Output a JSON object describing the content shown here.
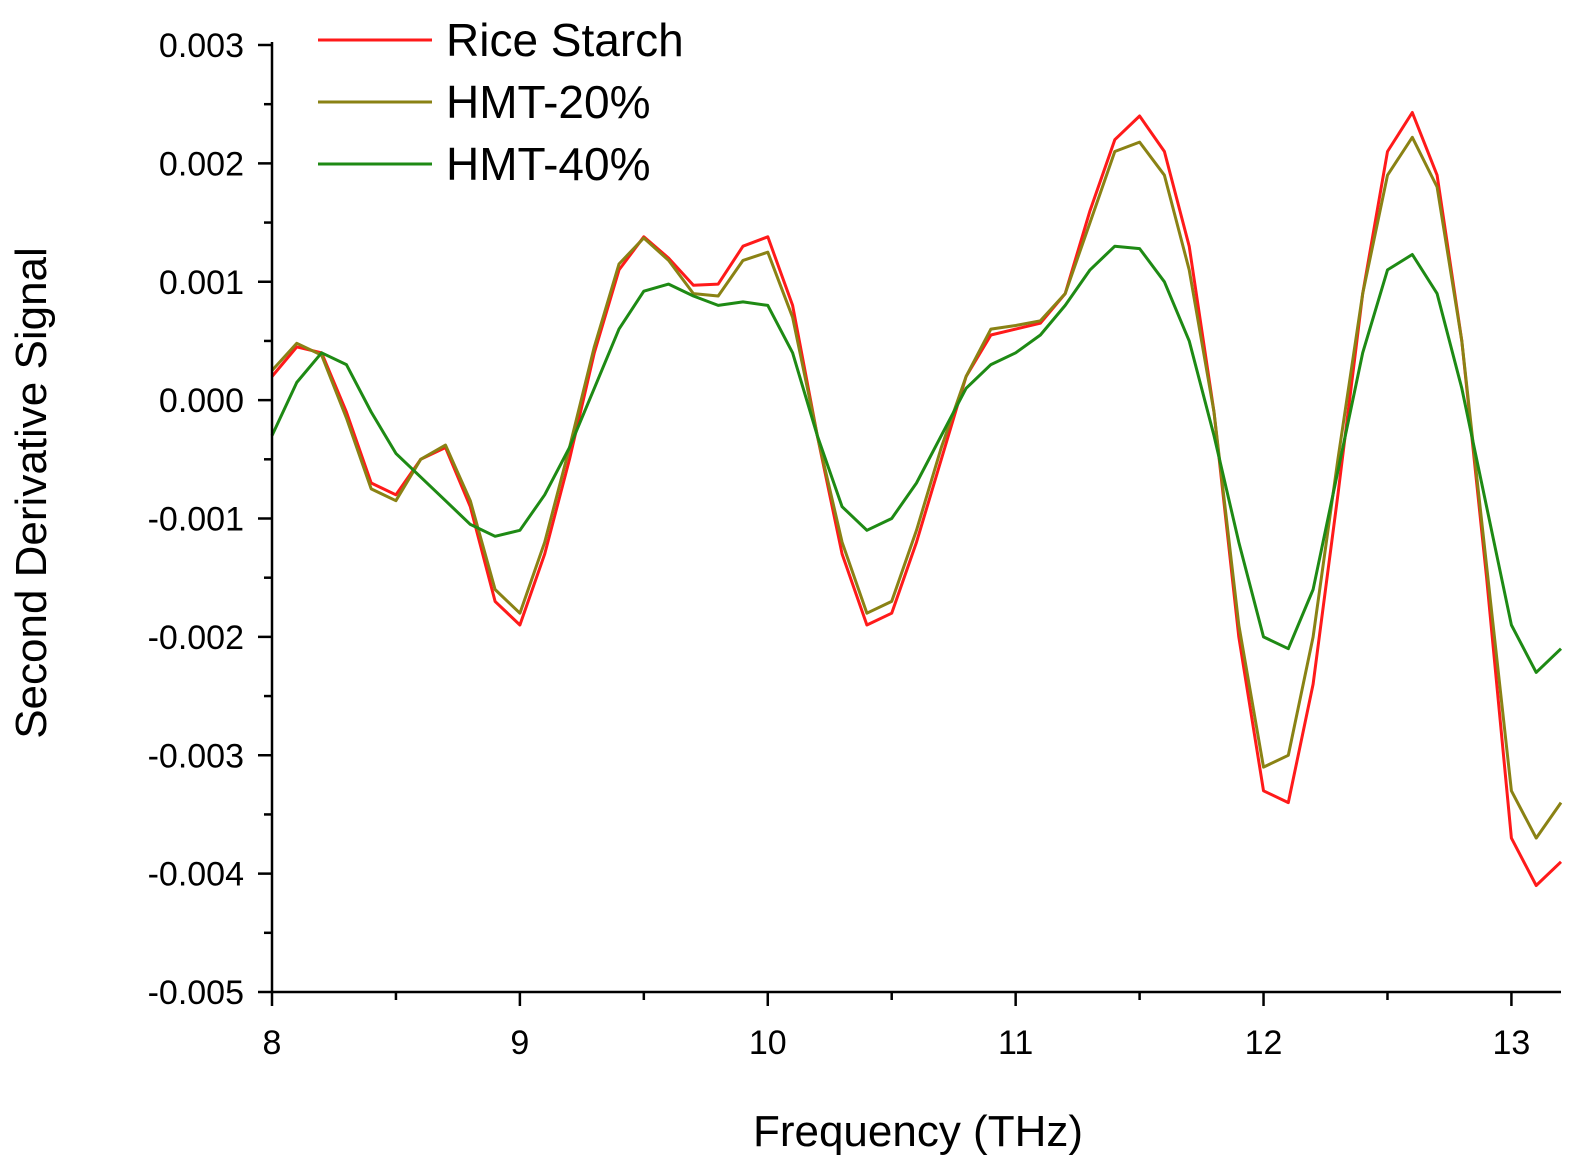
{
  "chart_data": {
    "type": "line",
    "title": "",
    "xlabel": "Frequency (THz)",
    "ylabel": "Second Derivative Signal",
    "xlim": [
      8.0,
      13.2
    ],
    "ylim": [
      -0.005,
      0.003
    ],
    "x_major_ticks": [
      8,
      9,
      10,
      11,
      12,
      13
    ],
    "x_tick_labels": [
      "8",
      "9",
      "10",
      "11",
      "12",
      "13"
    ],
    "y_major_ticks": [
      -0.005,
      -0.004,
      -0.003,
      -0.002,
      -0.001,
      0.0,
      0.001,
      0.002,
      0.003
    ],
    "y_tick_labels": [
      "-0.005",
      "-0.004",
      "-0.003",
      "-0.002",
      "-0.001",
      "0.000",
      "0.001",
      "0.002",
      "0.003"
    ],
    "grid": false,
    "legend_position": "top-left",
    "x": [
      8.0,
      8.1,
      8.2,
      8.3,
      8.4,
      8.5,
      8.6,
      8.7,
      8.8,
      8.9,
      9.0,
      9.1,
      9.2,
      9.3,
      9.4,
      9.5,
      9.6,
      9.7,
      9.8,
      9.9,
      10.0,
      10.1,
      10.2,
      10.3,
      10.4,
      10.5,
      10.6,
      10.7,
      10.8,
      10.9,
      11.0,
      11.1,
      11.2,
      11.3,
      11.4,
      11.5,
      11.6,
      11.7,
      11.8,
      11.9,
      12.0,
      12.1,
      12.2,
      12.3,
      12.4,
      12.5,
      12.6,
      12.7,
      12.8,
      12.9,
      13.0,
      13.1,
      13.2
    ],
    "series": [
      {
        "name": "Rice Starch",
        "color": "#ff1a1a",
        "values": [
          0.0002,
          0.00045,
          0.0004,
          -0.0001,
          -0.0007,
          -0.0008,
          -0.0005,
          -0.0004,
          -0.0009,
          -0.0017,
          -0.0019,
          -0.0013,
          -0.0005,
          0.0004,
          0.0011,
          0.00138,
          0.0012,
          0.00097,
          0.00098,
          0.0013,
          0.00138,
          0.0008,
          -0.0003,
          -0.0013,
          -0.0019,
          -0.0018,
          -0.0012,
          -0.0005,
          0.0002,
          0.00055,
          0.0006,
          0.00065,
          0.0009,
          0.0016,
          0.0022,
          0.0024,
          0.0021,
          0.0013,
          -0.0001,
          -0.002,
          -0.0033,
          -0.0034,
          -0.0024,
          -0.0008,
          0.0009,
          0.0021,
          0.00243,
          0.0019,
          0.0005,
          -0.0015,
          -0.0037,
          -0.0041,
          -0.0039
        ]
      },
      {
        "name": "HMT-20%",
        "color": "#8a8214",
        "values": [
          0.00025,
          0.00048,
          0.00038,
          -0.00015,
          -0.00075,
          -0.00085,
          -0.0005,
          -0.00038,
          -0.00085,
          -0.0016,
          -0.0018,
          -0.0012,
          -0.0004,
          0.00045,
          0.00115,
          0.00137,
          0.00118,
          0.0009,
          0.00088,
          0.00118,
          0.00125,
          0.0007,
          -0.0003,
          -0.0012,
          -0.0018,
          -0.0017,
          -0.0011,
          -0.0004,
          0.0002,
          0.0006,
          0.00063,
          0.00067,
          0.0009,
          0.0015,
          0.0021,
          0.00218,
          0.0019,
          0.0011,
          -0.0001,
          -0.0019,
          -0.0031,
          -0.003,
          -0.002,
          -0.0005,
          0.0009,
          0.0019,
          0.00222,
          0.0018,
          0.0005,
          -0.0014,
          -0.0033,
          -0.0037,
          -0.0034
        ]
      },
      {
        "name": "HMT-40%",
        "color": "#1e8a14",
        "values": [
          -0.0003,
          0.00015,
          0.0004,
          0.0003,
          -0.0001,
          -0.00045,
          -0.00065,
          -0.00085,
          -0.00105,
          -0.00115,
          -0.0011,
          -0.0008,
          -0.0004,
          0.0001,
          0.0006,
          0.00092,
          0.00098,
          0.00088,
          0.0008,
          0.00083,
          0.0008,
          0.0004,
          -0.0003,
          -0.0009,
          -0.0011,
          -0.001,
          -0.0007,
          -0.0003,
          0.0001,
          0.0003,
          0.0004,
          0.00055,
          0.0008,
          0.0011,
          0.0013,
          0.00128,
          0.001,
          0.0005,
          -0.0003,
          -0.0012,
          -0.002,
          -0.0021,
          -0.0016,
          -0.0006,
          0.0004,
          0.0011,
          0.00123,
          0.0009,
          0.0001,
          -0.0009,
          -0.0019,
          -0.0023,
          -0.0021
        ]
      }
    ]
  }
}
